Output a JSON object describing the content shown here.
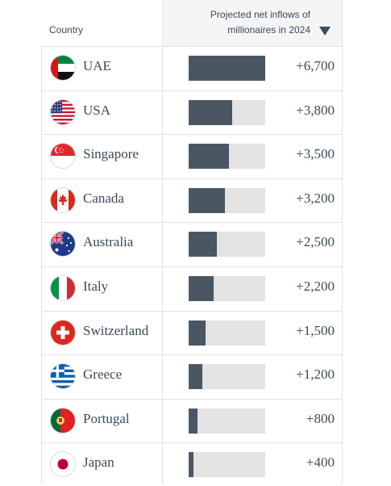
{
  "header": {
    "country_label": "Country",
    "value_label_line1": "Projected net inflows of",
    "value_label_line2": "millionaires in 2024",
    "sort_icon": "sort-desc-triangle"
  },
  "colors": {
    "bar": "#4a5763",
    "track": "#e3e3e3",
    "text": "#3d4a5a"
  },
  "chart_data": {
    "type": "table",
    "columns": [
      "Country",
      "Projected net inflows of millionaires in 2024"
    ],
    "max_value": 6700,
    "rows": [
      {
        "country": "UAE",
        "flag": "uae-flag-icon",
        "value": 6700,
        "label": "+6,700"
      },
      {
        "country": "USA",
        "flag": "usa-flag-icon",
        "value": 3800,
        "label": "+3,800"
      },
      {
        "country": "Singapore",
        "flag": "singapore-flag-icon",
        "value": 3500,
        "label": "+3,500"
      },
      {
        "country": "Canada",
        "flag": "canada-flag-icon",
        "value": 3200,
        "label": "+3,200"
      },
      {
        "country": "Australia",
        "flag": "australia-flag-icon",
        "value": 2500,
        "label": "+2,500"
      },
      {
        "country": "Italy",
        "flag": "italy-flag-icon",
        "value": 2200,
        "label": "+2,200"
      },
      {
        "country": "Switzerland",
        "flag": "switzerland-flag-icon",
        "value": 1500,
        "label": "+1,500"
      },
      {
        "country": "Greece",
        "flag": "greece-flag-icon",
        "value": 1200,
        "label": "+1,200"
      },
      {
        "country": "Portugal",
        "flag": "portugal-flag-icon",
        "value": 800,
        "label": "+800"
      },
      {
        "country": "Japan",
        "flag": "japan-flag-icon",
        "value": 400,
        "label": "+400"
      }
    ]
  }
}
